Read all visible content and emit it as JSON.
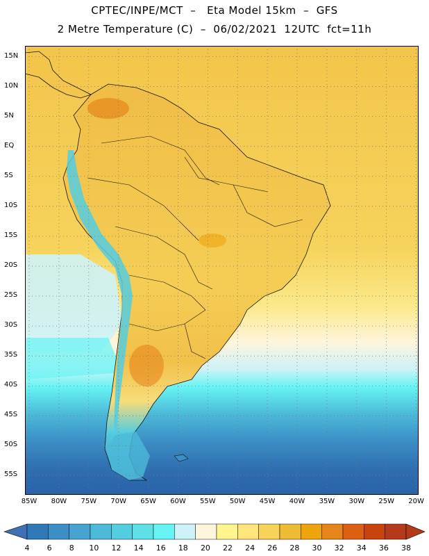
{
  "header": {
    "line1": "CPTEC/INPE/MCT  –   Eta Model 15km  –  GFS",
    "line2": "2 Metre Temperature (C)  –  06/02/2021  12UTC  fct=11h"
  },
  "map": {
    "lat_labels": [
      "15N",
      "10N",
      "5N",
      "EQ",
      "5S",
      "10S",
      "15S",
      "20S",
      "25S",
      "30S",
      "35S",
      "40S",
      "45S",
      "50S",
      "55S"
    ],
    "lon_labels": [
      "85W",
      "80W",
      "75W",
      "70W",
      "65W",
      "60W",
      "55W",
      "50W",
      "45W",
      "40W",
      "35W",
      "30W",
      "25W",
      "20W"
    ],
    "lat_values": [
      15,
      10,
      5,
      0,
      -5,
      -10,
      -15,
      -20,
      -25,
      -30,
      -35,
      -40,
      -45,
      -50,
      -55
    ],
    "lon_values": [
      -85,
      -80,
      -75,
      -70,
      -65,
      -60,
      -55,
      -50,
      -45,
      -40,
      -35,
      -30,
      -25,
      -20
    ],
    "extent": {
      "lon_min": -85.7,
      "lon_max": -19.6,
      "lat_min": -58.2,
      "lat_max": 16.8
    },
    "grid": "dotted"
  },
  "colorbar": {
    "labels": [
      "4",
      "6",
      "8",
      "10",
      "12",
      "14",
      "16",
      "18",
      "20",
      "22",
      "24",
      "26",
      "28",
      "30",
      "32",
      "34",
      "36",
      "38"
    ],
    "colors": [
      "#3f6fb5",
      "#2f79b8",
      "#3b8fc6",
      "#47a4d2",
      "#4cbad9",
      "#53cde0",
      "#5ee0e8",
      "#66f4f4",
      "#cdf2f7",
      "#fff5dc",
      "#fff58e",
      "#ffe57a",
      "#f7d35a",
      "#eebb35",
      "#eea40b",
      "#e6861a",
      "#dc6010",
      "#c8440c",
      "#b53a1a"
    ],
    "left_arrow_color": "#3f6fb5",
    "right_arrow_color": "#b53a1a"
  }
}
